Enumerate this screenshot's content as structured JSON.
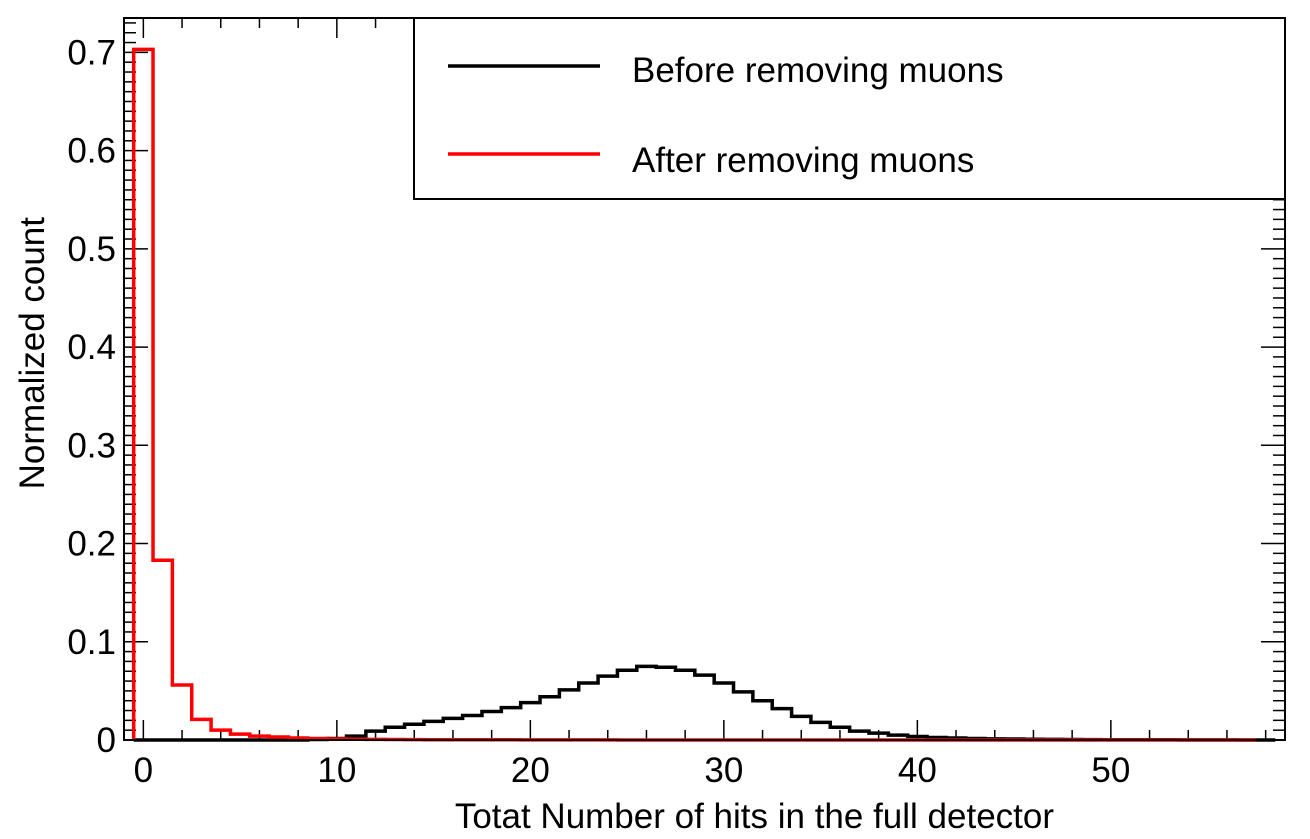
{
  "chart_data": {
    "type": "line",
    "title": "",
    "xlabel": "Totat Number of hits in the full detector",
    "ylabel": "Normalized count",
    "xlim": [
      -1,
      59
    ],
    "ylim": [
      0,
      0.735
    ],
    "grid": false,
    "legend_position": "top-right",
    "x_major_ticks": [
      0,
      10,
      20,
      30,
      40,
      50
    ],
    "x_tick_labels": [
      "0",
      "10",
      "20",
      "30",
      "40",
      "50"
    ],
    "y_major_ticks": [
      0,
      0.1,
      0.2,
      0.3,
      0.4,
      0.5,
      0.6,
      0.7
    ],
    "y_tick_labels": [
      "0",
      "0.1",
      "0.2",
      "0.3",
      "0.4",
      "0.5",
      "0.6",
      "0.7"
    ],
    "bin_edges_start": -0.5,
    "bin_width": 1,
    "series": [
      {
        "name": "Before removing muons",
        "color": "#000000",
        "values": [
          0,
          0,
          0,
          0,
          0,
          0,
          0,
          0,
          0,
          0.0005,
          0.0015,
          0.004,
          0.009,
          0.013,
          0.016,
          0.019,
          0.022,
          0.025,
          0.029,
          0.033,
          0.038,
          0.044,
          0.051,
          0.058,
          0.065,
          0.071,
          0.075,
          0.074,
          0.071,
          0.066,
          0.058,
          0.049,
          0.04,
          0.032,
          0.024,
          0.018,
          0.013,
          0.009,
          0.007,
          0.005,
          0.0035,
          0.0025,
          0.002,
          0.0015,
          0.0012,
          0.001,
          0.0008,
          0.0006,
          0.0005,
          0.0004,
          0.0003,
          0.0003,
          0.0002,
          0.0002,
          0.0001,
          0.0001,
          0.0001,
          0,
          0
        ]
      },
      {
        "name": "After removing muons",
        "color": "#ff0000",
        "values": [
          0.703,
          0.183,
          0.056,
          0.021,
          0.01,
          0.006,
          0.004,
          0.003,
          0.002,
          0.0015,
          0.001,
          0.0008,
          0.0006,
          0.0005,
          0.0004,
          0.0003,
          0.0003,
          0.0002,
          0.0002,
          0.0002,
          0.0001,
          0.0001,
          0.0001,
          0.0001,
          0.0001,
          0,
          0,
          0,
          0,
          0,
          0,
          0,
          0,
          0,
          0,
          0,
          0,
          0,
          0,
          0,
          0,
          0,
          0,
          0,
          0,
          0,
          0,
          0,
          0,
          0,
          0,
          0,
          0,
          0,
          0,
          0,
          0,
          0
        ]
      }
    ]
  }
}
